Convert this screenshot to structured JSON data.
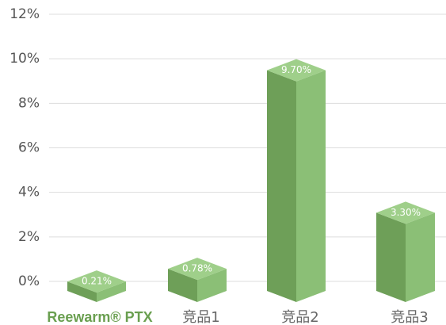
{
  "chart_data": {
    "type": "bar3d",
    "categories": [
      "Reewarm® PTX",
      "竞品1",
      "竞品2",
      "竞品3"
    ],
    "values": [
      0.21,
      0.78,
      9.7,
      3.3
    ],
    "value_labels": [
      "0.21%",
      "0.78%",
      "9.70%",
      "3.30%"
    ],
    "color": "#7cb466",
    "ylim": [
      0,
      12
    ],
    "yticks": [
      {
        "value": 0,
        "label": "0%"
      },
      {
        "value": 2,
        "label": "2%"
      },
      {
        "value": 4,
        "label": "4%"
      },
      {
        "value": 6,
        "label": "6%"
      },
      {
        "value": 8,
        "label": "8%"
      },
      {
        "value": 10,
        "label": "10%"
      },
      {
        "value": 12,
        "label": "12%"
      }
    ],
    "grid": true
  }
}
